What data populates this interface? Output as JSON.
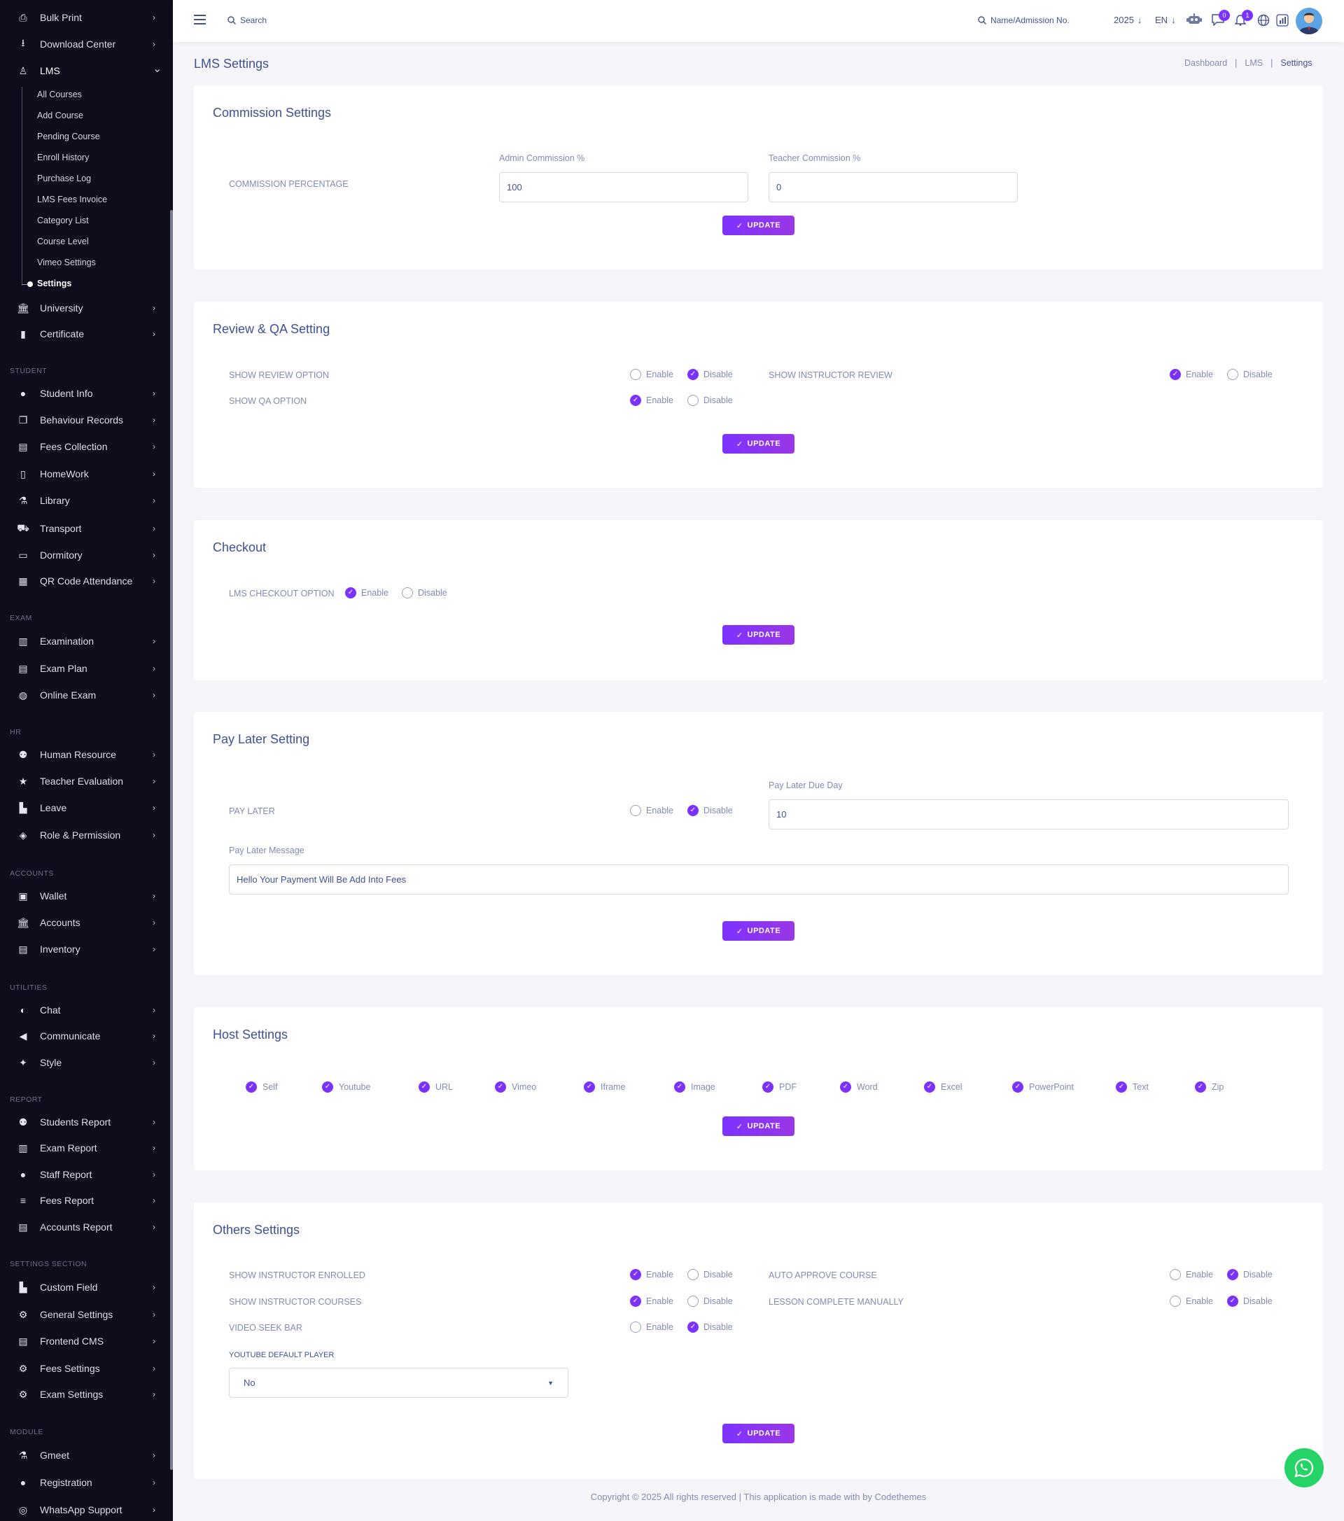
{
  "sidebar": {
    "top_items": [
      {
        "label": "Bulk Print",
        "icon": "printer-icon"
      },
      {
        "label": "Download Center",
        "icon": "download-icon"
      },
      {
        "label": "LMS",
        "icon": "lms-icon"
      }
    ],
    "lms_sub": [
      "All Courses",
      "Add Course",
      "Pending Course",
      "Enroll History",
      "Purchase Log",
      "LMS Fees Invoice",
      "Category List",
      "Course Level",
      "Vimeo Settings",
      "Settings"
    ],
    "lms_active": "Settings",
    "after_lms": [
      {
        "label": "University",
        "icon": "bank-icon"
      },
      {
        "label": "Certificate",
        "icon": "book-icon"
      }
    ],
    "sections": [
      {
        "title": "STUDENT",
        "items": [
          {
            "label": "Student Info",
            "icon": "user-icon"
          },
          {
            "label": "Behaviour Records",
            "icon": "copy-icon"
          },
          {
            "label": "Fees Collection",
            "icon": "money-icon"
          },
          {
            "label": "HomeWork",
            "icon": "book-open-icon"
          },
          {
            "label": "Library",
            "icon": "flask-icon"
          },
          {
            "label": "Transport",
            "icon": "bus-icon"
          },
          {
            "label": "Dormitory",
            "icon": "bed-icon"
          },
          {
            "label": "QR Code Attendance",
            "icon": "qr-icon"
          }
        ]
      },
      {
        "title": "EXAM",
        "items": [
          {
            "label": "Examination",
            "icon": "map-icon"
          },
          {
            "label": "Exam Plan",
            "icon": "clipboard-icon"
          },
          {
            "label": "Online Exam",
            "icon": "globe-icon"
          }
        ]
      },
      {
        "title": "HR",
        "items": [
          {
            "label": "Human Resource",
            "icon": "users-icon"
          },
          {
            "label": "Teacher Evaluation",
            "icon": "star-icon"
          },
          {
            "label": "Leave",
            "icon": "chart-icon"
          },
          {
            "label": "Role & Permission",
            "icon": "shield-icon"
          }
        ]
      },
      {
        "title": "ACCOUNTS",
        "items": [
          {
            "label": "Wallet",
            "icon": "wallet-icon"
          },
          {
            "label": "Accounts",
            "icon": "bank-icon"
          },
          {
            "label": "Inventory",
            "icon": "inventory-icon"
          }
        ]
      },
      {
        "title": "UTILITIES",
        "items": [
          {
            "label": "Chat",
            "icon": "chat-icon"
          },
          {
            "label": "Communicate",
            "icon": "megaphone-icon"
          },
          {
            "label": "Style",
            "icon": "style-icon"
          }
        ]
      },
      {
        "title": "REPORT",
        "items": [
          {
            "label": "Students Report",
            "icon": "users-icon"
          },
          {
            "label": "Exam Report",
            "icon": "report-icon"
          },
          {
            "label": "Staff Report",
            "icon": "staff-icon"
          },
          {
            "label": "Fees Report",
            "icon": "fees-icon"
          },
          {
            "label": "Accounts Report",
            "icon": "money-icon"
          }
        ]
      },
      {
        "title": "SETTINGS SECTION",
        "items": [
          {
            "label": "Custom Field",
            "icon": "chart-icon"
          },
          {
            "label": "General Settings",
            "icon": "gears-icon"
          },
          {
            "label": "Frontend CMS",
            "icon": "inventory-icon"
          },
          {
            "label": "Fees Settings",
            "icon": "gears-icon"
          },
          {
            "label": "Exam Settings",
            "icon": "gears-icon"
          }
        ]
      },
      {
        "title": "MODULE",
        "items": [
          {
            "label": "Gmeet",
            "icon": "flask-icon"
          },
          {
            "label": "Registration",
            "icon": "user-icon"
          },
          {
            "label": "WhatsApp Support",
            "icon": "whatsapp-icon"
          }
        ]
      }
    ]
  },
  "topbar": {
    "search_label": "Search",
    "student_search_label": "Name/Admission No.",
    "year": "2025",
    "language": "EN",
    "message_count": "0",
    "notification_count": "1"
  },
  "page": {
    "title": "LMS Settings",
    "breadcrumb": [
      "Dashboard",
      "LMS",
      "Settings"
    ]
  },
  "update_label": "UPDATE",
  "enable_label": "Enable",
  "disable_label": "Disable",
  "commission": {
    "title": "Commission Settings",
    "row_label": "COMMISSION PERCENTAGE",
    "admin_label": "Admin Commission %",
    "admin_value": "100",
    "teacher_label": "Teacher Commission %",
    "teacher_value": "0"
  },
  "review": {
    "title": "Review & QA Setting",
    "show_review": {
      "label": "SHOW REVIEW OPTION",
      "value": "Disable"
    },
    "show_instructor_review": {
      "label": "SHOW INSTRUCTOR REVIEW",
      "value": "Enable"
    },
    "show_qa": {
      "label": "SHOW QA OPTION",
      "value": "Enable"
    }
  },
  "checkout": {
    "title": "Checkout",
    "label": "LMS CHECKOUT OPTION",
    "value": "Enable"
  },
  "paylater": {
    "title": "Pay Later Setting",
    "label": "PAY LATER",
    "value": "Disable",
    "due_label": "Pay Later Due Day",
    "due_value": "10",
    "message_label": "Pay Later Message",
    "message_value": "Hello Your Payment Will Be Add Into Fees"
  },
  "host": {
    "title": "Host Settings",
    "options": [
      "Self",
      "Youtube",
      "URL",
      "Vimeo",
      "Iframe",
      "Image",
      "PDF",
      "Word",
      "Excel",
      "PowerPoint",
      "Text",
      "Zip"
    ]
  },
  "others": {
    "title": "Others Settings",
    "instructor_enrolled": {
      "label": "SHOW INSTRUCTOR ENROLLED",
      "value": "Enable"
    },
    "auto_approve": {
      "label": "AUTO APPROVE COURSE",
      "value": "Disable"
    },
    "instructor_courses": {
      "label": "SHOW INSTRUCTOR COURSES",
      "value": "Enable"
    },
    "lesson_complete": {
      "label": "LESSON COMPLETE MANUALLY",
      "value": "Disable"
    },
    "video_seek": {
      "label": "VIDEO SEEK BAR",
      "value": "Disable"
    },
    "youtube_label": "YOUTUBE DEFAULT PLAYER",
    "youtube_value": "No"
  },
  "footer": "Copyright © 2025 All rights reserved | This application is made with by Codethemes",
  "colors": {
    "accent": "#7c32ff",
    "sidebar_bg": "#0d0d1c",
    "text": "#415094",
    "muted": "#828bb2"
  }
}
